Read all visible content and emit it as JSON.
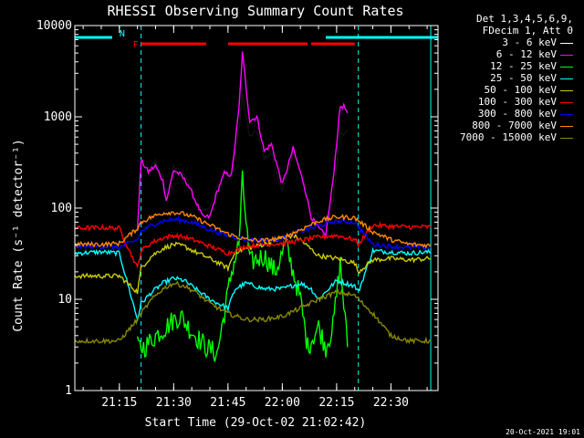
{
  "chart_data": {
    "type": "line",
    "title": "RHESSI Observing Summary Count Rates",
    "xlabel": "Start Time (29-Oct-02 21:02:42)",
    "ylabel": "Count Rate (s⁻¹ detector⁻¹)",
    "yscale": "log",
    "ylim": [
      1,
      10000
    ],
    "xlim": [
      "21:02:42",
      "22:43:00"
    ],
    "x_ticks": [
      "21:15",
      "21:30",
      "21:45",
      "22:00",
      "22:15",
      "22:30"
    ],
    "y_ticks": [
      "1",
      "10",
      "100",
      "1000",
      "10000"
    ],
    "footer_date": "20-Oct-2021 19:01",
    "legend_header": [
      "Det 1,3,4,5,6,9,",
      "FDecim 1, Att 0"
    ],
    "flags": [
      {
        "name": "N",
        "color": "#00ffff",
        "segments": [
          [
            "21:02:42",
            "21:13"
          ],
          [
            "22:12",
            "22:43"
          ]
        ]
      },
      {
        "name": "F",
        "color": "#ff0000",
        "segments": [
          [
            "21:21",
            "21:39"
          ],
          [
            "21:45",
            "22:07"
          ],
          [
            "22:08",
            "22:20"
          ]
        ]
      }
    ],
    "night_lines": [
      "21:21",
      "22:21"
    ],
    "night_edges": [
      "21:02:42",
      "22:41"
    ],
    "series": [
      {
        "name": "3 - 6 keV",
        "color": "#000000",
        "points": [
          [
            "21:21",
            330
          ],
          [
            "21:23",
            250
          ],
          [
            "21:25",
            330
          ],
          [
            "21:27",
            220
          ],
          [
            "21:28",
            140
          ],
          [
            "21:30",
            280
          ],
          [
            "21:32",
            250
          ],
          [
            "21:34",
            200
          ],
          [
            "21:36",
            130
          ],
          [
            "21:38",
            95
          ],
          [
            "21:40",
            100
          ],
          [
            "21:42",
            180
          ],
          [
            "21:44",
            240
          ],
          [
            "21:46",
            230
          ],
          [
            "21:48",
            700
          ],
          [
            "21:49",
            1700
          ],
          [
            "21:51",
            600
          ],
          [
            "21:53",
            700
          ],
          [
            "21:55",
            350
          ],
          [
            "21:57",
            400
          ],
          [
            "22:00",
            150
          ],
          [
            "22:03",
            400
          ],
          [
            "22:06",
            200
          ],
          [
            "22:08",
            100
          ],
          [
            "22:10",
            80
          ],
          [
            "22:12",
            75
          ],
          [
            "22:14",
            120
          ],
          [
            "22:16",
            650
          ],
          [
            "22:17",
            650
          ],
          [
            "22:18",
            680
          ]
        ]
      },
      {
        "name": "6 - 12 keV",
        "color": "#ff00ff",
        "points": [
          [
            "21:20",
            60
          ],
          [
            "21:21",
            330
          ],
          [
            "21:23",
            250
          ],
          [
            "21:25",
            290
          ],
          [
            "21:27",
            200
          ],
          [
            "21:28",
            120
          ],
          [
            "21:30",
            260
          ],
          [
            "21:32",
            230
          ],
          [
            "21:34",
            180
          ],
          [
            "21:36",
            120
          ],
          [
            "21:38",
            80
          ],
          [
            "21:40",
            80
          ],
          [
            "21:42",
            150
          ],
          [
            "21:44",
            240
          ],
          [
            "21:46",
            230
          ],
          [
            "21:48",
            1200
          ],
          [
            "21:49",
            5000
          ],
          [
            "21:51",
            900
          ],
          [
            "21:53",
            1000
          ],
          [
            "21:55",
            420
          ],
          [
            "21:57",
            500
          ],
          [
            "22:00",
            180
          ],
          [
            "22:03",
            450
          ],
          [
            "22:06",
            180
          ],
          [
            "22:08",
            80
          ],
          [
            "22:10",
            60
          ],
          [
            "22:12",
            50
          ],
          [
            "22:14",
            200
          ],
          [
            "22:16",
            1300
          ],
          [
            "22:17",
            1300
          ],
          [
            "22:18",
            1100
          ]
        ]
      },
      {
        "name": "12 - 25 keV",
        "color": "#00ff00",
        "points": [
          [
            "21:20",
            3
          ],
          [
            "21:22",
            3
          ],
          [
            "21:25",
            4
          ],
          [
            "21:28",
            5
          ],
          [
            "21:30",
            6
          ],
          [
            "21:32",
            6.5
          ],
          [
            "21:34",
            5
          ],
          [
            "21:36",
            4
          ],
          [
            "21:39",
            3
          ],
          [
            "21:42",
            2.5
          ],
          [
            "21:46",
            20
          ],
          [
            "21:48",
            40
          ],
          [
            "21:49",
            200
          ],
          [
            "21:51",
            25
          ],
          [
            "21:55",
            30
          ],
          [
            "21:58",
            20
          ],
          [
            "22:01",
            40
          ],
          [
            "22:05",
            10
          ],
          [
            "22:07",
            3
          ],
          [
            "22:10",
            5
          ],
          [
            "22:12",
            3
          ],
          [
            "22:14",
            5
          ],
          [
            "22:16",
            25
          ],
          [
            "22:18",
            3
          ]
        ]
      },
      {
        "name": "25 - 50 keV",
        "color": "#00ffff",
        "points": [
          [
            "21:02:42",
            32
          ],
          [
            "21:10",
            33
          ],
          [
            "21:15",
            32
          ],
          [
            "21:20",
            6
          ],
          [
            "21:21",
            9
          ],
          [
            "21:24",
            12
          ],
          [
            "21:27",
            15
          ],
          [
            "21:30",
            17
          ],
          [
            "21:33",
            16
          ],
          [
            "21:36",
            13
          ],
          [
            "21:40",
            10
          ],
          [
            "21:45",
            8
          ],
          [
            "21:47",
            13
          ],
          [
            "21:50",
            15
          ],
          [
            "21:55",
            13
          ],
          [
            "22:00",
            13
          ],
          [
            "22:05",
            15
          ],
          [
            "22:08",
            13
          ],
          [
            "22:10",
            10
          ],
          [
            "22:15",
            16
          ],
          [
            "22:20",
            14
          ],
          [
            "22:21",
            12
          ],
          [
            "22:25",
            34
          ],
          [
            "22:30",
            33
          ],
          [
            "22:35",
            32
          ],
          [
            "22:41",
            33
          ]
        ]
      },
      {
        "name": "50 - 100 keV",
        "color": "#cccc00",
        "points": [
          [
            "21:02:42",
            18
          ],
          [
            "21:15",
            18
          ],
          [
            "21:20",
            12
          ],
          [
            "21:21",
            22
          ],
          [
            "21:24",
            30
          ],
          [
            "21:27",
            36
          ],
          [
            "21:30",
            40
          ],
          [
            "21:33",
            38
          ],
          [
            "21:36",
            33
          ],
          [
            "21:40",
            28
          ],
          [
            "21:45",
            22
          ],
          [
            "21:47",
            33
          ],
          [
            "21:50",
            36
          ],
          [
            "21:55",
            40
          ],
          [
            "22:00",
            47
          ],
          [
            "22:03",
            50
          ],
          [
            "22:05",
            45
          ],
          [
            "22:10",
            30
          ],
          [
            "22:15",
            28
          ],
          [
            "22:20",
            25
          ],
          [
            "22:21",
            20
          ],
          [
            "22:25",
            27
          ],
          [
            "22:30",
            28
          ],
          [
            "22:35",
            27
          ],
          [
            "22:41",
            28
          ]
        ]
      },
      {
        "name": "100 - 300 keV",
        "color": "#ff0000",
        "points": [
          [
            "21:02:42",
            60
          ],
          [
            "21:10",
            61
          ],
          [
            "21:15",
            60
          ],
          [
            "21:20",
            22
          ],
          [
            "21:21",
            34
          ],
          [
            "21:24",
            42
          ],
          [
            "21:27",
            47
          ],
          [
            "21:30",
            50
          ],
          [
            "21:33",
            48
          ],
          [
            "21:36",
            44
          ],
          [
            "21:40",
            38
          ],
          [
            "21:45",
            32
          ],
          [
            "21:50",
            38
          ],
          [
            "21:55",
            40
          ],
          [
            "22:00",
            41
          ],
          [
            "22:05",
            44
          ],
          [
            "22:10",
            48
          ],
          [
            "22:15",
            50
          ],
          [
            "22:20",
            45
          ],
          [
            "22:21",
            40
          ],
          [
            "22:25",
            65
          ],
          [
            "22:30",
            63
          ],
          [
            "22:35",
            62
          ],
          [
            "22:41",
            62
          ]
        ]
      },
      {
        "name": "300 - 800 keV",
        "color": "#0000ff",
        "points": [
          [
            "21:02:42",
            38
          ],
          [
            "21:10",
            38
          ],
          [
            "21:15",
            37
          ],
          [
            "21:20",
            45
          ],
          [
            "21:21",
            55
          ],
          [
            "21:24",
            65
          ],
          [
            "21:27",
            72
          ],
          [
            "21:30",
            75
          ],
          [
            "21:33",
            73
          ],
          [
            "21:36",
            68
          ],
          [
            "21:40",
            58
          ],
          [
            "21:45",
            50
          ],
          [
            "21:50",
            45
          ],
          [
            "21:55",
            44
          ],
          [
            "22:00",
            47
          ],
          [
            "22:05",
            55
          ],
          [
            "22:10",
            64
          ],
          [
            "22:15",
            72
          ],
          [
            "22:20",
            70
          ],
          [
            "22:25",
            40
          ],
          [
            "22:30",
            38
          ],
          [
            "22:35",
            37
          ],
          [
            "22:41",
            37
          ]
        ]
      },
      {
        "name": "800 - 7000 keV",
        "color": "#ff8800",
        "points": [
          [
            "21:02:42",
            40
          ],
          [
            "21:10",
            40
          ],
          [
            "21:15",
            41
          ],
          [
            "21:20",
            60
          ],
          [
            "21:21",
            70
          ],
          [
            "21:24",
            80
          ],
          [
            "21:27",
            88
          ],
          [
            "21:30",
            90
          ],
          [
            "21:33",
            86
          ],
          [
            "21:36",
            78
          ],
          [
            "21:40",
            65
          ],
          [
            "21:45",
            52
          ],
          [
            "21:50",
            45
          ],
          [
            "21:55",
            44
          ],
          [
            "22:00",
            47
          ],
          [
            "22:05",
            58
          ],
          [
            "22:10",
            72
          ],
          [
            "22:15",
            80
          ],
          [
            "22:20",
            78
          ],
          [
            "22:25",
            55
          ],
          [
            "22:30",
            45
          ],
          [
            "22:35",
            40
          ],
          [
            "22:41",
            39
          ]
        ]
      },
      {
        "name": "7000 - 15000 keV",
        "color": "#888800",
        "points": [
          [
            "21:02:42",
            3.5
          ],
          [
            "21:10",
            3.5
          ],
          [
            "21:15",
            3.5
          ],
          [
            "21:20",
            6
          ],
          [
            "21:21",
            7
          ],
          [
            "21:24",
            10
          ],
          [
            "21:27",
            13
          ],
          [
            "21:30",
            15
          ],
          [
            "21:33",
            14
          ],
          [
            "21:36",
            12
          ],
          [
            "21:40",
            9
          ],
          [
            "21:45",
            7
          ],
          [
            "21:50",
            6
          ],
          [
            "21:55",
            6
          ],
          [
            "22:00",
            6.5
          ],
          [
            "22:05",
            8
          ],
          [
            "22:10",
            10
          ],
          [
            "22:15",
            12
          ],
          [
            "22:20",
            11
          ],
          [
            "22:25",
            7
          ],
          [
            "22:30",
            4
          ],
          [
            "22:35",
            3.5
          ],
          [
            "22:41",
            3.5
          ]
        ]
      }
    ]
  }
}
